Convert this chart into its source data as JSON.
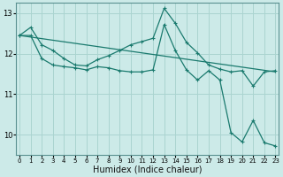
{
  "title": "",
  "xlabel": "Humidex (Indice chaleur)",
  "ylabel": "",
  "bg_color": "#cceae8",
  "line_color": "#1a7a6e",
  "grid_color": "#aad4d0",
  "x_ticks": [
    0,
    1,
    2,
    3,
    4,
    5,
    6,
    7,
    8,
    9,
    10,
    11,
    12,
    13,
    14,
    15,
    16,
    17,
    18,
    19,
    20,
    21,
    22,
    23
  ],
  "y_ticks": [
    10,
    11,
    12,
    13
  ],
  "ylim": [
    9.5,
    13.25
  ],
  "xlim": [
    -0.3,
    23.3
  ],
  "series": [
    {
      "x": [
        0,
        1,
        2,
        3,
        4,
        5,
        6,
        7,
        8,
        9,
        10,
        11,
        12,
        13,
        14,
        15,
        16,
        17,
        18,
        19,
        20,
        21,
        22,
        23
      ],
      "y": [
        12.45,
        12.65,
        12.22,
        12.08,
        11.88,
        11.72,
        11.7,
        11.85,
        11.95,
        12.08,
        12.22,
        12.3,
        12.38,
        13.12,
        12.75,
        12.28,
        12.02,
        11.72,
        11.62,
        11.55,
        11.58,
        11.2,
        11.55,
        11.58
      ],
      "marker": "+"
    },
    {
      "x": [
        0,
        1,
        2,
        3,
        4,
        5,
        6,
        7,
        8,
        9,
        10,
        11,
        12,
        13,
        14,
        15,
        16,
        17,
        18,
        19,
        20,
        21,
        22,
        23
      ],
      "y": [
        12.45,
        12.45,
        11.88,
        11.72,
        11.68,
        11.65,
        11.6,
        11.68,
        11.65,
        11.58,
        11.55,
        11.55,
        11.6,
        12.72,
        12.08,
        11.6,
        11.35,
        11.58,
        11.35,
        10.05,
        9.82,
        10.35,
        9.8,
        9.72
      ],
      "marker": "+"
    },
    {
      "x": [
        0,
        23
      ],
      "y": [
        12.45,
        11.55
      ],
      "marker": null
    }
  ]
}
